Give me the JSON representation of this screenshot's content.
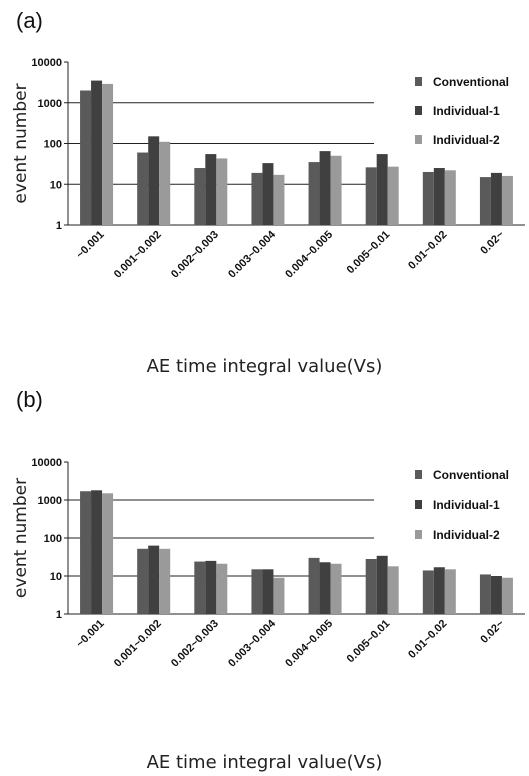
{
  "chart_data": [
    {
      "panel_label": "(a)",
      "type": "bar",
      "categories": [
        "~0.001",
        "0.001~0.002",
        "0.002~0.003",
        "0.003~0.004",
        "0.004~0.005",
        "0.005~0.01",
        "0.01~0.02",
        "0.02~"
      ],
      "series": [
        {
          "name": "Conventional",
          "color": "#5a5a5a",
          "values": [
            2000,
            60,
            25,
            19,
            35,
            26,
            20,
            15
          ]
        },
        {
          "name": "Individual-1",
          "color": "#404040",
          "values": [
            3500,
            150,
            55,
            33,
            65,
            55,
            25,
            19
          ]
        },
        {
          "name": "Individual-2",
          "color": "#9a9a9a",
          "values": [
            2900,
            110,
            43,
            17,
            50,
            27,
            22,
            16
          ]
        }
      ],
      "xlabel": "AE time integral value(Vs)",
      "ylabel": "event number",
      "yscale": "log",
      "ylim": [
        1,
        10000
      ],
      "yticks": [
        "1",
        "10",
        "100",
        "1000",
        "10000"
      ],
      "grid": true,
      "legend_position": "right"
    },
    {
      "panel_label": "(b)",
      "type": "bar",
      "categories": [
        "~0.001",
        "0.001~0.002",
        "0.002~0.003",
        "0.003~0.004",
        "0.004~0.005",
        "0.005~0.01",
        "0.01~0.02",
        "0.02~"
      ],
      "series": [
        {
          "name": "Conventional",
          "color": "#5a5a5a",
          "values": [
            1700,
            52,
            24,
            15,
            30,
            28,
            14,
            11
          ]
        },
        {
          "name": "Individual-1",
          "color": "#404040",
          "values": [
            1800,
            63,
            25,
            15,
            23,
            34,
            17,
            10
          ]
        },
        {
          "name": "Individual-2",
          "color": "#9a9a9a",
          "values": [
            1500,
            52,
            21,
            9,
            21,
            18,
            15,
            9
          ]
        }
      ],
      "xlabel": "AE time integral value(Vs)",
      "ylabel": "event number",
      "yscale": "log",
      "ylim": [
        1,
        10000
      ],
      "yticks": [
        "1",
        "10",
        "100",
        "1000",
        "10000"
      ],
      "grid": true,
      "legend_position": "right"
    }
  ]
}
